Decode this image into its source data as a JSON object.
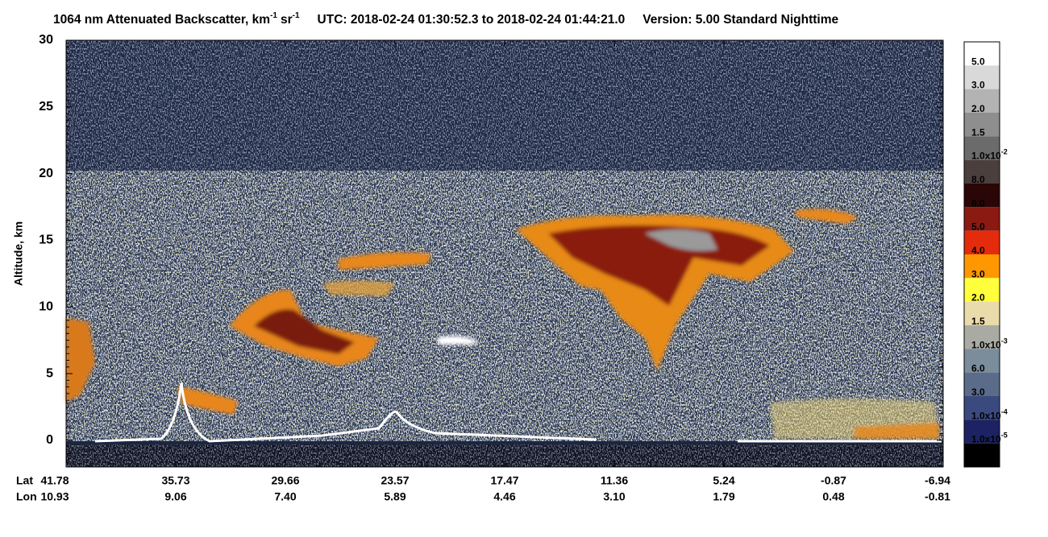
{
  "chart_data": {
    "type": "curtain",
    "title": {
      "main": "1064 nm Attenuated Backscatter, km",
      "main_sup": "-1",
      "unit2": "sr",
      "unit2_sup": "-1",
      "utc": "UTC:  2018-02-24 01:30:52.3  to  2018-02-24 01:44:21.0",
      "version": "Version: 5.00  Standard  Nighttime"
    },
    "ylabel": "Altitude, km",
    "ylim": [
      -2,
      30
    ],
    "yticks": [
      0,
      5,
      10,
      15,
      20,
      25,
      30
    ],
    "x_rows": [
      {
        "name": "Lat",
        "labels": [
          "41.78",
          "35.73",
          "29.66",
          "23.57",
          "17.47",
          "11.36",
          "5.24",
          "-0.87",
          "-6.94"
        ]
      },
      {
        "name": "Lon",
        "labels": [
          "10.93",
          "9.06",
          "7.40",
          "5.89",
          "4.46",
          "3.10",
          "1.79",
          "0.48",
          "-0.81"
        ]
      }
    ],
    "colorbar": {
      "colors": [
        "#ffffff",
        "#d9d9d9",
        "#b3b3b3",
        "#8e8e8e",
        "#6b6b6b",
        "#4a3f3c",
        "#2b0606",
        "#8a1a12",
        "#e42c0c",
        "#ff9800",
        "#ffff3c",
        "#eadbab",
        "#a9aba3",
        "#7b8c9a",
        "#5b6c8a",
        "#3b4a7e",
        "#1c2262",
        "#000000"
      ],
      "labels": [
        {
          "label": "5.0"
        },
        {
          "label": "3.0"
        },
        {
          "label": "2.0"
        },
        {
          "label": "1.5"
        },
        {
          "label": "1.0x10",
          "sup": "-2"
        },
        {
          "label": "8.0"
        },
        {
          "label": "6.0"
        },
        {
          "label": "5.0"
        },
        {
          "label": "4.0"
        },
        {
          "label": "3.0"
        },
        {
          "label": "2.0"
        },
        {
          "label": "1.5"
        },
        {
          "label": "1.0x10",
          "sup": "-3"
        },
        {
          "label": "6.0"
        },
        {
          "label": "3.0"
        },
        {
          "label": "1.0x10",
          "sup": "-4"
        },
        {
          "label": "1.0x10",
          "sup": "-5"
        }
      ]
    }
  }
}
